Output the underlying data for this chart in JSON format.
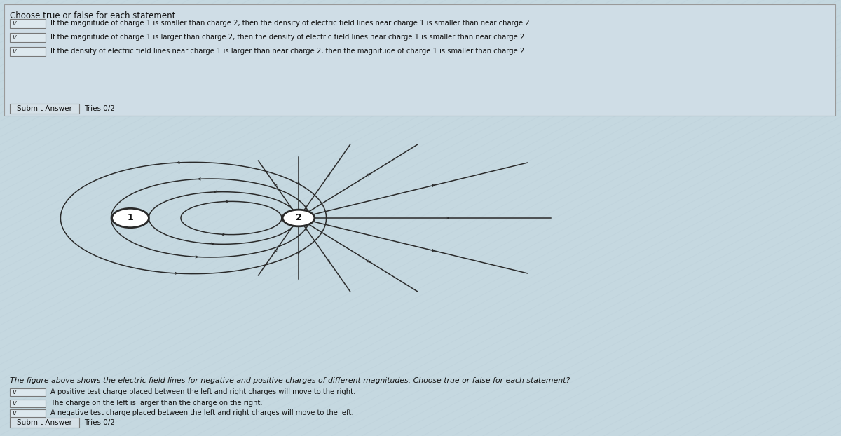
{
  "bg_stripe_color1": "#c5d8e0",
  "bg_stripe_color2": "#b8ccd6",
  "top_panel_bg": "#d0dfe8",
  "title_top": "Choose true or false for each statement.",
  "statements_top": [
    "If the magnitude of charge 1 is smaller than charge 2, then the density of electric field lines near charge 1 is smaller than near charge 2.",
    "If the magnitude of charge 1 is larger than charge 2, then the density of electric field lines near charge 1 is smaller than near charge 2.",
    "If the density of electric field lines near charge 1 is larger than near charge 2, then the magnitude of charge 1 is smaller than charge 2."
  ],
  "submit_label_top": "Submit Answer",
  "tries_top": "Tries 0/2",
  "caption": "The figure above shows the electric field lines for negative and positive charges of different magnitudes. Choose true or false for each statement?",
  "statements_bottom": [
    "A positive test charge placed between the left and right charges will move to the right.",
    "The charge on the left is larger than the charge on the right.",
    "A negative test charge placed between the left and right charges will move to the left."
  ],
  "submit_label_bottom": "Submit Answer",
  "tries_bottom": "Tries 0/2",
  "line_color": "#2a2a2a",
  "circle_fill": "#ffffff",
  "text_color": "#111111",
  "dropdown_fill": "#e0e8ec",
  "button_fill": "#d8e4ea",
  "c1x": 0.155,
  "c1y": 0.5,
  "c2x": 0.355,
  "c2y": 0.5
}
